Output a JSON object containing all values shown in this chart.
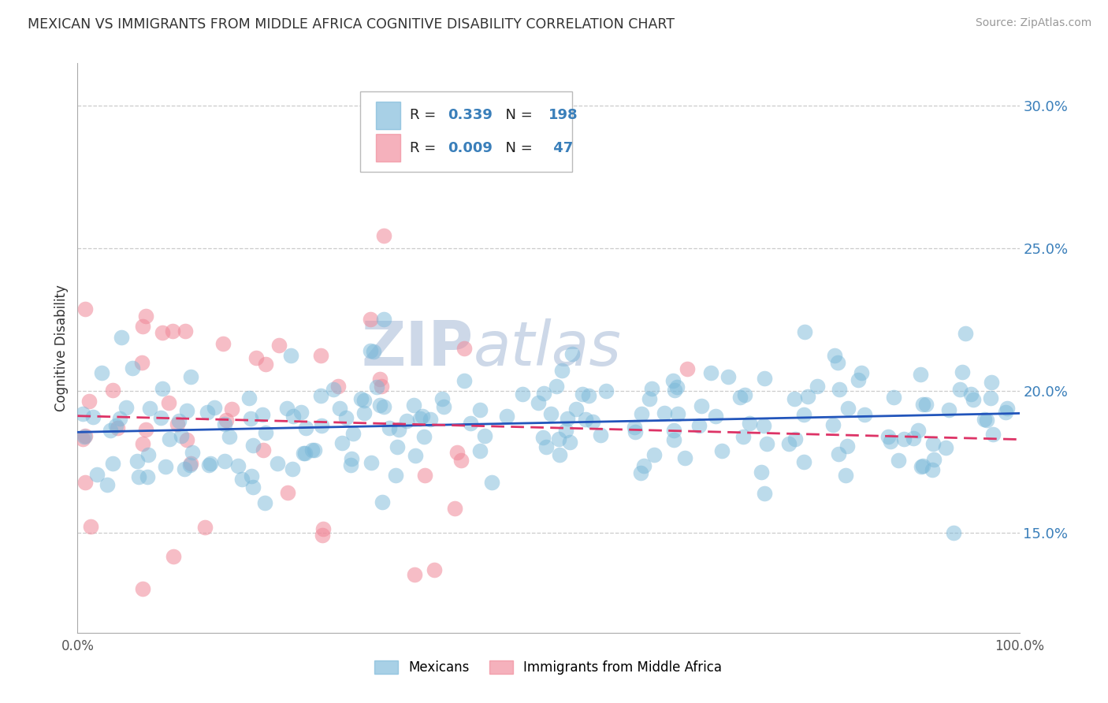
{
  "title": "MEXICAN VS IMMIGRANTS FROM MIDDLE AFRICA COGNITIVE DISABILITY CORRELATION CHART",
  "source": "Source: ZipAtlas.com",
  "ylabel": "Cognitive Disability",
  "xlim": [
    0,
    1.0
  ],
  "ylim": [
    0.115,
    0.315
  ],
  "ytick_positions": [
    0.15,
    0.2,
    0.25,
    0.3
  ],
  "ytick_labels": [
    "15.0%",
    "20.0%",
    "25.0%",
    "30.0%"
  ],
  "mexicans_color": "#7ab8d9",
  "immigrants_color": "#f08898",
  "mexicans_line_color": "#2255bb",
  "immigrants_line_color": "#dd3366",
  "background_color": "#ffffff",
  "grid_color": "#cccccc",
  "watermark_text1": "ZIP",
  "watermark_text2": "atlas",
  "watermark_color": "#cdd8e8",
  "n_mexicans": 198,
  "n_immigrants": 47
}
